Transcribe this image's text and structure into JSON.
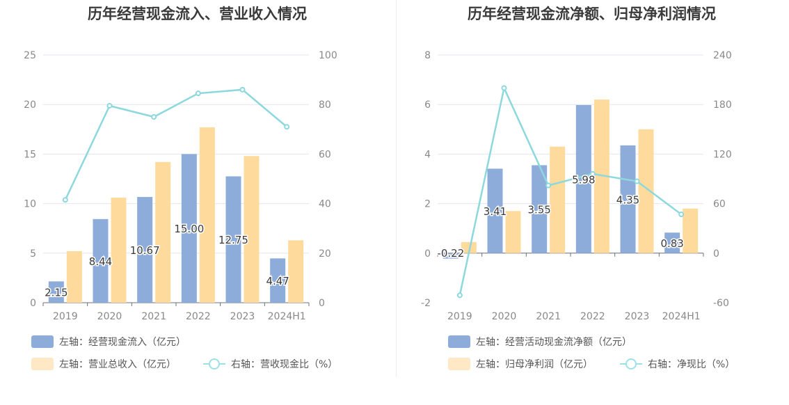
{
  "colors": {
    "bar1": "#8eacd9",
    "bar2": "#fedb9c",
    "line": "#8dd8dd",
    "axis_text": "#888888",
    "grid": "#e3e6ee",
    "label": "#3a3a3a"
  },
  "legend_swatch_colors": {
    "bar1": "#8eacd9",
    "bar2": "#fee8c5"
  },
  "chart_data": [
    {
      "type": "bar",
      "title": "历年经营现金流入、营业收入情况",
      "categories": [
        "2019",
        "2020",
        "2021",
        "2022",
        "2023",
        "2024H1"
      ],
      "left_ylim": [
        0,
        25
      ],
      "left_yticks": [
        "0",
        "5",
        "10",
        "15",
        "20",
        "25"
      ],
      "right_ylim": [
        0,
        100
      ],
      "right_yticks": [
        "0",
        "20",
        "40",
        "60",
        "80",
        "100"
      ],
      "series": [
        {
          "name": "左轴：经营现金流入（亿元）",
          "axis": "left",
          "kind": "bar",
          "values": [
            2.15,
            8.44,
            10.67,
            15.0,
            12.75,
            4.47
          ],
          "labels": [
            "2.15",
            "8.44",
            "10.67",
            "15.00",
            "12.75",
            "4.47"
          ]
        },
        {
          "name": "左轴：营业总收入（亿元）",
          "axis": "left",
          "kind": "bar",
          "values": [
            5.2,
            10.6,
            14.2,
            17.7,
            14.8,
            6.3
          ]
        },
        {
          "name": "右轴：营收现金比（%）",
          "axis": "right",
          "kind": "line",
          "values": [
            41.5,
            79.5,
            75.0,
            84.5,
            86.0,
            71.0
          ]
        }
      ],
      "grid": true,
      "legend_position": "bottom-left"
    },
    {
      "type": "bar",
      "title": "历年经营现金流净额、归母净利润情况",
      "categories": [
        "2019",
        "2020",
        "2021",
        "2022",
        "2023",
        "2024H1"
      ],
      "left_ylim": [
        -2,
        8
      ],
      "left_yticks": [
        "-2",
        "0",
        "2",
        "4",
        "6",
        "8"
      ],
      "right_ylim": [
        -60,
        240
      ],
      "right_yticks": [
        "-60",
        "0",
        "60",
        "120",
        "180",
        "240"
      ],
      "series": [
        {
          "name": "左轴：经营活动现金流净额（亿元）",
          "axis": "left",
          "kind": "bar",
          "values": [
            -0.22,
            3.41,
            3.55,
            5.98,
            4.35,
            0.83
          ],
          "labels": [
            "-0.22",
            "3.41",
            "3.55",
            "5.98",
            "4.35",
            "0.83"
          ]
        },
        {
          "name": "左轴：归母净利润（亿元）",
          "axis": "left",
          "kind": "bar",
          "values": [
            0.45,
            1.7,
            4.3,
            6.2,
            5.0,
            1.8
          ]
        },
        {
          "name": "右轴：净现比（%）",
          "axis": "right",
          "kind": "line",
          "values": [
            -51,
            200,
            82,
            96,
            87,
            47
          ]
        }
      ],
      "grid": true,
      "legend_position": "bottom-left"
    }
  ]
}
